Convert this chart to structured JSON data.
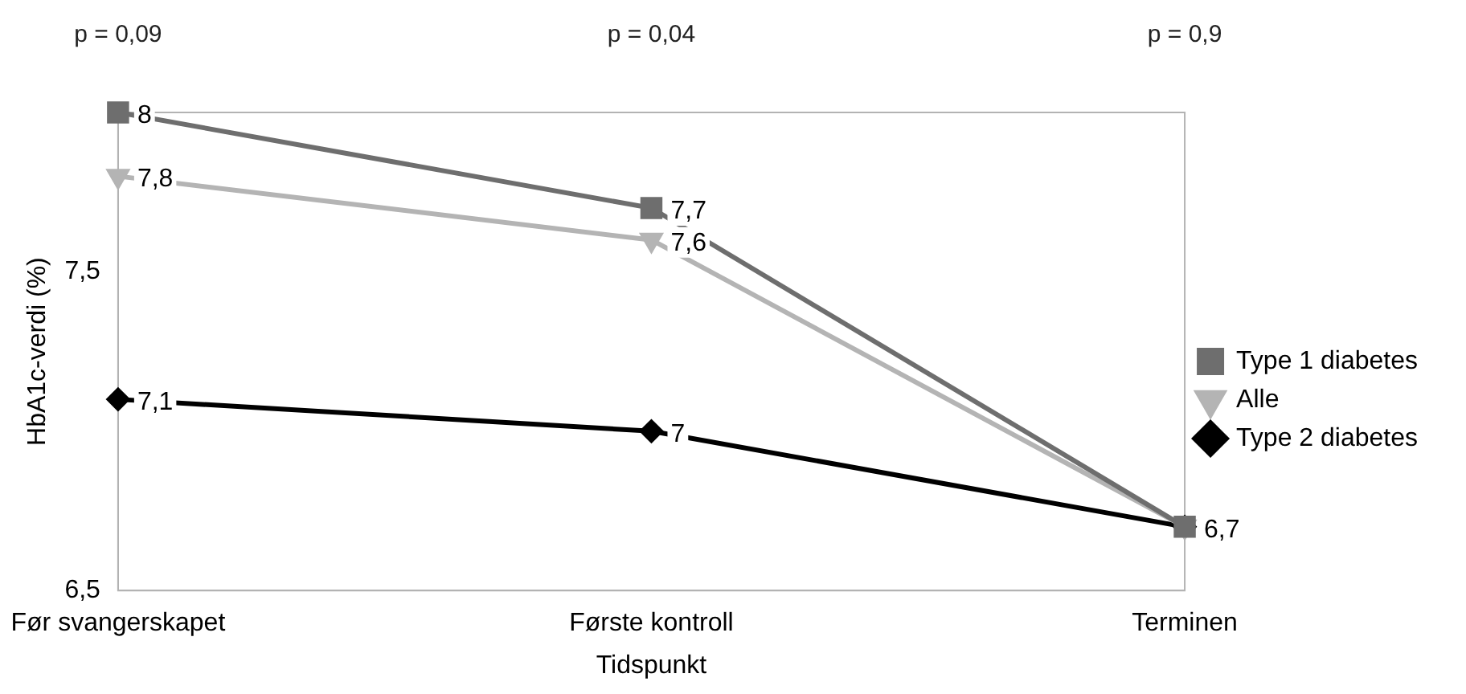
{
  "chart_data": {
    "type": "line",
    "xlabel": "Tidspunkt",
    "ylabel": "HbA1c-verdi (%)",
    "categories": [
      "Før svangerskapet",
      "Første kontroll",
      "Terminen"
    ],
    "series": [
      {
        "name": "Type 1 diabetes",
        "color": "#6e6e6e",
        "marker": "square",
        "values": [
          8,
          7.7,
          6.7
        ],
        "value_labels": [
          "8",
          "7,7",
          null
        ]
      },
      {
        "name": "Alle",
        "color": "#b4b4b4",
        "marker": "triangle",
        "values": [
          7.8,
          7.6,
          6.7
        ],
        "value_labels": [
          "7,8",
          "7,6",
          null
        ]
      },
      {
        "name": "Type 2 diabetes",
        "color": "#000000",
        "marker": "diamond",
        "values": [
          7.1,
          7,
          6.7
        ],
        "value_labels": [
          "7,1",
          "7",
          "6,7"
        ]
      }
    ],
    "ylim": [
      6.5,
      8
    ],
    "yticks": [
      {
        "value": 6.5,
        "label": "6,5"
      },
      {
        "value": 7.5,
        "label": "7,5"
      }
    ],
    "grid": false,
    "legend": "right",
    "annotations": [
      "p = 0,09",
      "p = 0,04",
      "p = 0,9"
    ]
  }
}
